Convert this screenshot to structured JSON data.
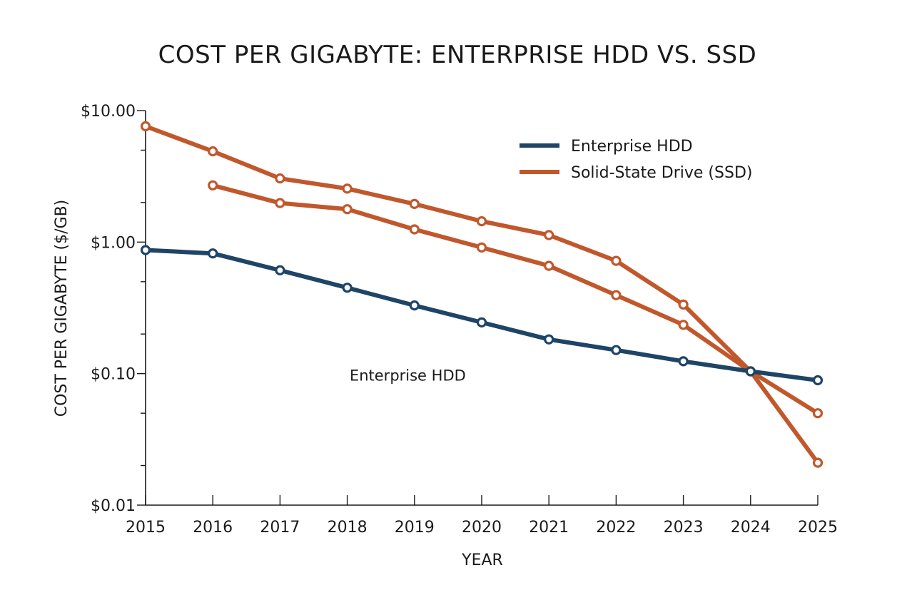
{
  "chart_data": {
    "type": "line",
    "title": "COST PER GIGABYTE: ENTERPRISE HDD VS. SSD",
    "xlabel": "YEAR",
    "ylabel": "COST PER GIGABYTE ($/GB)",
    "y_scale": "log",
    "ylim": [
      0.01,
      10
    ],
    "xlim": [
      2015,
      2025
    ],
    "grid": false,
    "legend_position": "top-right",
    "x_ticks": [
      {
        "value": 2015,
        "label": "2015"
      },
      {
        "value": 2016,
        "label": "2016"
      },
      {
        "value": 2017,
        "label": "2017"
      },
      {
        "value": 2018,
        "label": "2018"
      },
      {
        "value": 2019,
        "label": "2019"
      },
      {
        "value": 2020,
        "label": "2020"
      },
      {
        "value": 2021,
        "label": "2021"
      },
      {
        "value": 2022,
        "label": "2022"
      },
      {
        "value": 2023,
        "label": "2023"
      },
      {
        "value": 2024,
        "label": "2024"
      },
      {
        "value": 2025,
        "label": "2025"
      }
    ],
    "y_ticks": [
      {
        "value": 10,
        "label": "$10.00"
      },
      {
        "value": 1,
        "label": "$1.00"
      },
      {
        "value": 0.1,
        "label": "$0.10"
      },
      {
        "value": 0.01,
        "label": "$0.01"
      }
    ],
    "y_minor_ticks": [
      5,
      2,
      0.5,
      0.2,
      0.05,
      0.02
    ],
    "series": [
      {
        "name": "Enterprise HDD",
        "color": "#1e4466",
        "x": [
          2015,
          2016,
          2017,
          2018,
          2019,
          2020,
          2021,
          2022,
          2023,
          2024,
          2025
        ],
        "y": [
          0.87,
          0.82,
          0.61,
          0.45,
          0.33,
          0.245,
          0.182,
          0.151,
          0.124,
          0.104,
          0.089
        ]
      },
      {
        "name": "Solid-State Drive (SSD)",
        "color": "#c0582c",
        "x": [
          2015,
          2016,
          2017,
          2018,
          2019,
          2020,
          2021,
          2022,
          2023,
          2024,
          2025
        ],
        "y": [
          7.6,
          4.9,
          3.05,
          2.55,
          1.95,
          1.44,
          1.13,
          0.72,
          0.335,
          0.104,
          0.021
        ]
      },
      {
        "color": "#c0582c",
        "x": [
          2016,
          2017,
          2018,
          2019,
          2020,
          2021,
          2022,
          2023,
          2024,
          2025
        ],
        "y": [
          2.7,
          1.98,
          1.78,
          1.25,
          0.91,
          0.66,
          0.395,
          0.235,
          0.104,
          0.05
        ]
      }
    ],
    "legend": [
      {
        "label": "Enterprise HDD",
        "color": "#1e4466"
      },
      {
        "label": "Solid-State Drive (SSD)",
        "color": "#c0582c"
      }
    ],
    "annotations": [
      {
        "text": "Enterprise HDD",
        "x": 2018.9,
        "y": 0.078
      }
    ]
  }
}
